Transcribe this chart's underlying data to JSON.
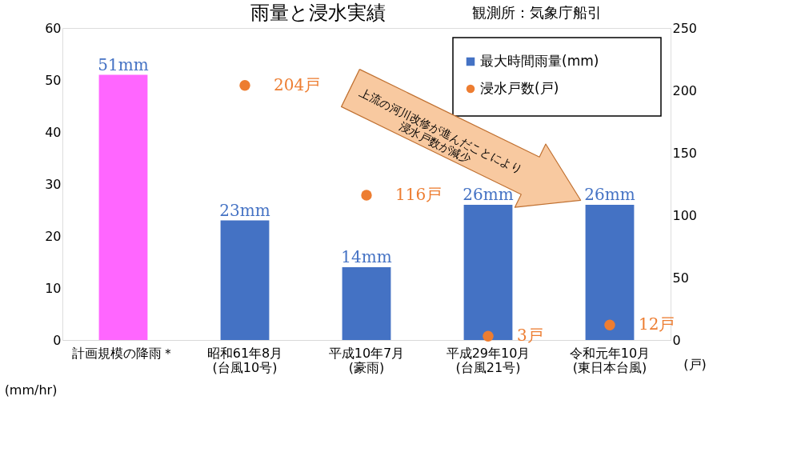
{
  "chart_data": {
    "type": "bar",
    "title": "雨量と浸水実績",
    "subtitle": "観測所：気象庁船引",
    "categories": [
      "計画規模の降雨＊",
      "昭和61年8月\n(台風10号)",
      "平成10年7月\n(豪雨)",
      "平成29年10月\n(台風21号)",
      "令和元年10月\n(東日本台風)"
    ],
    "ylabel": "(mm/hr)",
    "y2label": "(戸)",
    "series": [
      {
        "name": "最大時間雨量(mm)",
        "color": "#4472c4",
        "colors": [
          "#ff66ff",
          "#4472c4",
          "#4472c4",
          "#4472c4",
          "#4472c4"
        ],
        "values": [
          51,
          23,
          14,
          26,
          26
        ],
        "value_labels": [
          "51mm",
          "23mm",
          "14mm",
          "26mm",
          "26mm"
        ]
      },
      {
        "name": "浸水戸数(戸)",
        "type": "scatter",
        "axis": "y2",
        "color": "#ed7d31",
        "marker": "circle",
        "x": [
          "昭和61年8月\n(台風10号)",
          "平成10年7月\n(豪雨)",
          "平成29年10月\n(台風21号)",
          "令和元年10月\n(東日本台風)"
        ],
        "values": [
          204,
          116,
          3,
          12
        ],
        "value_labels": [
          "204戸",
          "116戸",
          "3戸",
          "12戸"
        ]
      }
    ],
    "ylim": [
      0,
      60
    ],
    "yticks": [
      0,
      10,
      20,
      30,
      40,
      50,
      60
    ],
    "y2lim": [
      0,
      250
    ],
    "y2ticks": [
      0,
      50,
      100,
      150,
      200,
      250
    ],
    "legend": "top right",
    "grid": false,
    "annotations": [
      "上流の河川改修が進んだことにより\n浸水戸数が減少"
    ]
  }
}
